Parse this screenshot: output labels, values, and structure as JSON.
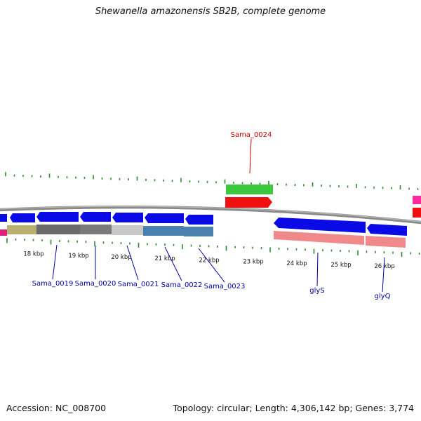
{
  "title": "Shewanella amazonensis SB2B, complete genome",
  "footer": {
    "accession": "Accession: NC_008700",
    "stats": "Topology: circular; Length: 4,306,142 bp; Genes: 3,774"
  },
  "colors": {
    "tick": "#2e8b2e",
    "backbone": "#808080",
    "cds_forward": "#0000ff",
    "cds_reverse": "#0000ff",
    "rna": "#ff0000",
    "label_blue": "#0000aa",
    "label_red": "#cc0000"
  },
  "scale": {
    "unit": "kbp",
    "major_ticks": [
      {
        "kbp": 18,
        "label": "18 kbp"
      },
      {
        "kbp": 19,
        "label": "19 kbp"
      },
      {
        "kbp": 20,
        "label": "20 kbp"
      },
      {
        "kbp": 21,
        "label": "21 kbp"
      },
      {
        "kbp": 22,
        "label": "22 kbp"
      },
      {
        "kbp": 23,
        "label": "23 kbp"
      },
      {
        "kbp": 24,
        "label": "24 kbp"
      },
      {
        "kbp": 25,
        "label": "25 kbp"
      },
      {
        "kbp": 26,
        "label": "26 kbp"
      }
    ]
  },
  "features": {
    "genes": [
      {
        "name": "Sama_0019",
        "strand": "reverse"
      },
      {
        "name": "Sama_0020",
        "strand": "reverse"
      },
      {
        "name": "Sama_0021",
        "strand": "reverse"
      },
      {
        "name": "Sama_0022",
        "strand": "reverse"
      },
      {
        "name": "Sama_0023",
        "strand": "reverse"
      },
      {
        "name": "Sama_0024",
        "strand": "forward"
      },
      {
        "name": "glyS",
        "strand": "reverse"
      },
      {
        "name": "glyQ",
        "strand": "reverse"
      }
    ]
  }
}
